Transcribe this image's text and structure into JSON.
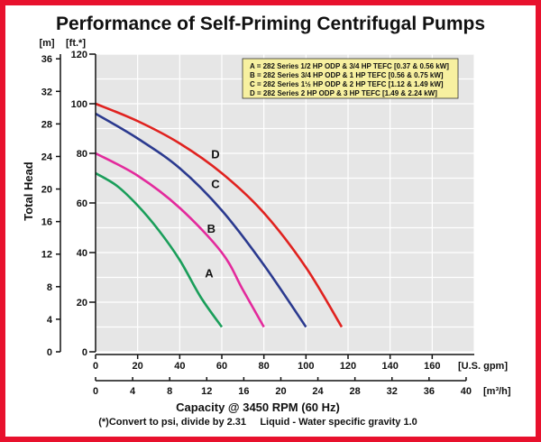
{
  "colors": {
    "border": "#e8112d",
    "plot_bg": "#e6e6e6",
    "legend_bg": "#f7f0a0",
    "grid": "#ffffff"
  },
  "chart_data": {
    "type": "line",
    "title": "Performance of Self-Priming Centrifugal Pumps",
    "ylabel": "Total Head",
    "xlabel": "Capacity @ 3450 RPM (60 Hz)",
    "x_unit_primary": "[U.S. gpm]",
    "x_unit_secondary": "[m³/h]",
    "y_unit_left": "[m]",
    "y_unit_right": "[ft.*]",
    "xlim": [
      0,
      180
    ],
    "ylim": [
      0,
      120
    ],
    "x_ticks_gpm": [
      "0",
      "20",
      "40",
      "60",
      "80",
      "100",
      "120",
      "140",
      "160"
    ],
    "x_ticks_m3h": [
      "0",
      "4",
      "8",
      "12",
      "16",
      "20",
      "24",
      "28",
      "32",
      "36",
      "40"
    ],
    "y_ticks_ft": [
      "0",
      "20",
      "40",
      "60",
      "80",
      "100",
      "120"
    ],
    "y_ticks_m": [
      "0",
      "4",
      "8",
      "12",
      "16",
      "20",
      "24",
      "28",
      "32",
      "36"
    ],
    "grid": true,
    "legend_position": "top-right",
    "legend": [
      "A = 282 Series 1/2 HP ODP & 3/4 HP TEFC [0.37 & 0.56 kW]",
      "B = 282 Series 3/4 HP ODP & 1 HP TEFC [0.56 & 0.75 kW]",
      "C = 282 Series 1½ HP ODP & 2 HP TEFC [1.12 & 1.49 kW]",
      "D = 282 Series 2 HP ODP & 3 HP TEFC [1.49 & 2.24 kW]"
    ],
    "series": [
      {
        "name": "A",
        "color": "#1a9e5a",
        "points": [
          [
            0,
            72
          ],
          [
            10,
            67
          ],
          [
            20,
            59
          ],
          [
            30,
            49
          ],
          [
            40,
            37
          ],
          [
            50,
            22
          ],
          [
            60,
            10
          ]
        ]
      },
      {
        "name": "B",
        "color": "#e32a9c",
        "points": [
          [
            0,
            80
          ],
          [
            20,
            71
          ],
          [
            40,
            58
          ],
          [
            60,
            40
          ],
          [
            70,
            25
          ],
          [
            80,
            10
          ]
        ]
      },
      {
        "name": "C",
        "color": "#2b3a8f",
        "points": [
          [
            0,
            96
          ],
          [
            20,
            86
          ],
          [
            40,
            74
          ],
          [
            60,
            57
          ],
          [
            80,
            35
          ],
          [
            100,
            10
          ]
        ]
      },
      {
        "name": "D",
        "color": "#e0221f",
        "points": [
          [
            0,
            100
          ],
          [
            20,
            93
          ],
          [
            40,
            84
          ],
          [
            60,
            72
          ],
          [
            80,
            56
          ],
          [
            100,
            34
          ],
          [
            117,
            10
          ]
        ]
      }
    ]
  },
  "footnote": "(*)Convert to psi, divide by 2.31     Liquid - Water specific gravity 1.0"
}
